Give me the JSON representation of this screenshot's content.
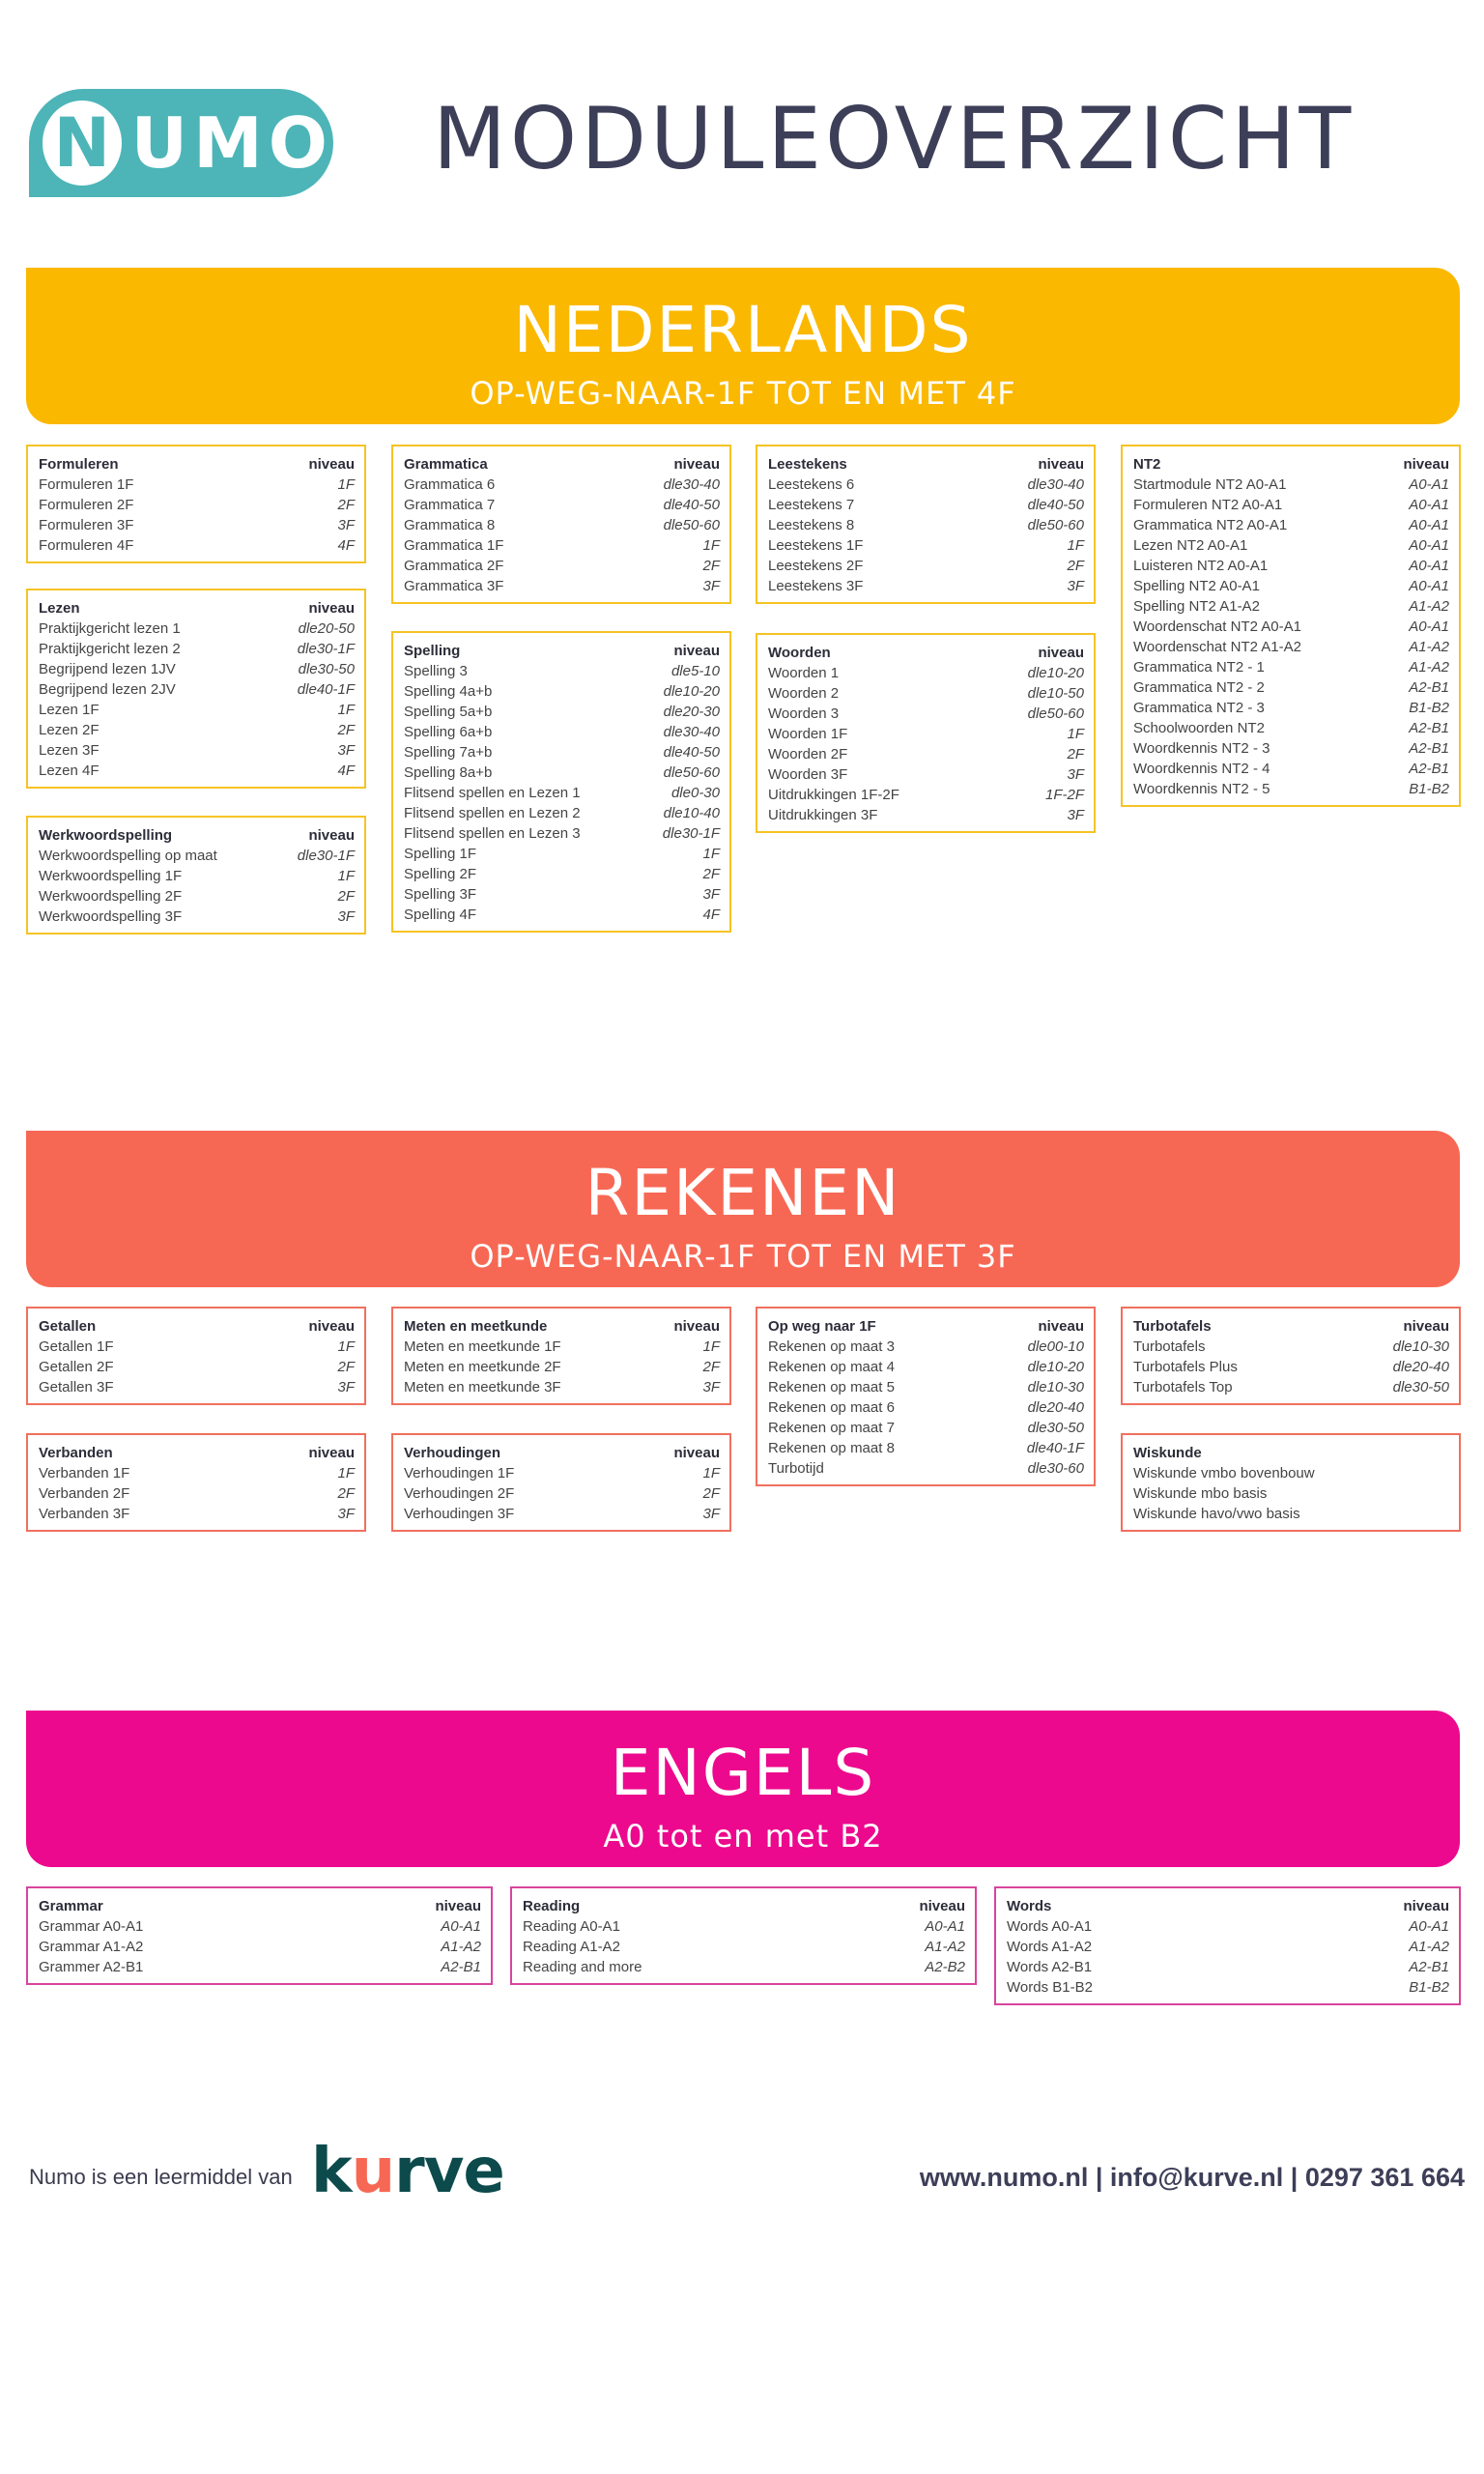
{
  "header": {
    "logo_n": "N",
    "logo_rest": "UMO",
    "title": "MODULEOVERZICHT"
  },
  "nederlands": {
    "title": "NEDERLANDS",
    "subtitle": "OP-WEG-NAAR-1F TOT EN MET 4F",
    "boxes": [
      {
        "title": "Formuleren",
        "niveau": "niveau",
        "rows": [
          [
            "Formuleren 1F",
            "1F"
          ],
          [
            "Formuleren 2F",
            "2F"
          ],
          [
            "Formuleren 3F",
            "3F"
          ],
          [
            "Formuleren 4F",
            "4F"
          ]
        ]
      },
      {
        "title": "Lezen",
        "niveau": "niveau",
        "rows": [
          [
            "Praktijkgericht lezen 1",
            "dle20-50"
          ],
          [
            "Praktijkgericht lezen 2",
            "dle30-1F"
          ],
          [
            "Begrijpend lezen 1JV",
            "dle30-50"
          ],
          [
            "Begrijpend lezen 2JV",
            "dle40-1F"
          ],
          [
            "Lezen 1F",
            "1F"
          ],
          [
            "Lezen 2F",
            "2F"
          ],
          [
            "Lezen 3F",
            "3F"
          ],
          [
            "Lezen 4F",
            "4F"
          ]
        ]
      },
      {
        "title": "Werkwoordspelling",
        "niveau": "niveau",
        "rows": [
          [
            "Werkwoordspelling op maat",
            "dle30-1F"
          ],
          [
            "Werkwoordspelling 1F",
            "1F"
          ],
          [
            "Werkwoordspelling 2F",
            "2F"
          ],
          [
            "Werkwoordspelling 3F",
            "3F"
          ]
        ]
      },
      {
        "title": "Grammatica",
        "niveau": "niveau",
        "rows": [
          [
            "Grammatica 6",
            "dle30-40"
          ],
          [
            "Grammatica 7",
            "dle40-50"
          ],
          [
            "Grammatica 8",
            "dle50-60"
          ],
          [
            "Grammatica 1F",
            "1F"
          ],
          [
            "Grammatica 2F",
            "2F"
          ],
          [
            "Grammatica 3F",
            "3F"
          ]
        ]
      },
      {
        "title": "Spelling",
        "niveau": "niveau",
        "rows": [
          [
            "Spelling 3",
            "dle5-10"
          ],
          [
            "Spelling 4a+b",
            "dle10-20"
          ],
          [
            "Spelling 5a+b",
            "dle20-30"
          ],
          [
            "Spelling 6a+b",
            "dle30-40"
          ],
          [
            "Spelling 7a+b",
            "dle40-50"
          ],
          [
            "Spelling 8a+b",
            "dle50-60"
          ],
          [
            "Flitsend spellen en Lezen 1",
            "dle0-30"
          ],
          [
            "Flitsend spellen en Lezen 2",
            "dle10-40"
          ],
          [
            "Flitsend spellen en Lezen 3",
            "dle30-1F"
          ],
          [
            "Spelling 1F",
            "1F"
          ],
          [
            "Spelling 2F",
            "2F"
          ],
          [
            "Spelling 3F",
            "3F"
          ],
          [
            "Spelling 4F",
            "4F"
          ]
        ]
      },
      {
        "title": "Leestekens",
        "niveau": "niveau",
        "rows": [
          [
            "Leestekens 6",
            "dle30-40"
          ],
          [
            "Leestekens 7",
            "dle40-50"
          ],
          [
            "Leestekens 8",
            "dle50-60"
          ],
          [
            "Leestekens 1F",
            "1F"
          ],
          [
            "Leestekens 2F",
            "2F"
          ],
          [
            "Leestekens 3F",
            "3F"
          ]
        ]
      },
      {
        "title": "Woorden",
        "niveau": "niveau",
        "rows": [
          [
            "Woorden 1",
            "dle10-20"
          ],
          [
            "Woorden 2",
            "dle10-50"
          ],
          [
            "Woorden 3",
            "dle50-60"
          ],
          [
            "Woorden 1F",
            "1F"
          ],
          [
            "Woorden 2F",
            "2F"
          ],
          [
            "Woorden 3F",
            "3F"
          ],
          [
            "Uitdrukkingen 1F-2F",
            "1F-2F"
          ],
          [
            "Uitdrukkingen 3F",
            "3F"
          ]
        ]
      },
      {
        "title": "NT2",
        "niveau": "niveau",
        "rows": [
          [
            "Startmodule NT2 A0-A1",
            "A0-A1"
          ],
          [
            "Formuleren NT2 A0-A1",
            "A0-A1"
          ],
          [
            "Grammatica NT2 A0-A1",
            "A0-A1"
          ],
          [
            "Lezen NT2 A0-A1",
            "A0-A1"
          ],
          [
            "Luisteren NT2 A0-A1",
            "A0-A1"
          ],
          [
            "Spelling NT2 A0-A1",
            "A0-A1"
          ],
          [
            "Spelling NT2 A1-A2",
            "A1-A2"
          ],
          [
            "Woordenschat NT2 A0-A1",
            "A0-A1"
          ],
          [
            "Woordenschat NT2 A1-A2",
            "A1-A2"
          ],
          [
            "Grammatica NT2 - 1",
            "A1-A2"
          ],
          [
            "Grammatica NT2 - 2",
            "A2-B1"
          ],
          [
            "Grammatica NT2 - 3",
            "B1-B2"
          ],
          [
            "Schoolwoorden NT2",
            "A2-B1"
          ],
          [
            "Woordkennis NT2 - 3",
            "A2-B1"
          ],
          [
            "Woordkennis NT2 - 4",
            "A2-B1"
          ],
          [
            "Woordkennis NT2 - 5",
            "B1-B2"
          ]
        ]
      }
    ]
  },
  "rekenen": {
    "title": "REKENEN",
    "subtitle": "OP-WEG-NAAR-1F TOT EN MET 3F",
    "boxes": [
      {
        "title": "Getallen",
        "niveau": "niveau",
        "rows": [
          [
            "Getallen 1F",
            "1F"
          ],
          [
            "Getallen 2F",
            "2F"
          ],
          [
            "Getallen 3F",
            "3F"
          ]
        ]
      },
      {
        "title": "Verbanden",
        "niveau": "niveau",
        "rows": [
          [
            "Verbanden 1F",
            "1F"
          ],
          [
            "Verbanden 2F",
            "2F"
          ],
          [
            "Verbanden 3F",
            "3F"
          ]
        ]
      },
      {
        "title": "Meten en meetkunde",
        "niveau": "niveau",
        "rows": [
          [
            "Meten en meetkunde 1F",
            "1F"
          ],
          [
            "Meten en meetkunde 2F",
            "2F"
          ],
          [
            "Meten en meetkunde 3F",
            "3F"
          ]
        ]
      },
      {
        "title": "Verhoudingen",
        "niveau": "niveau",
        "rows": [
          [
            "Verhoudingen 1F",
            "1F"
          ],
          [
            "Verhoudingen 2F",
            "2F"
          ],
          [
            "Verhoudingen 3F",
            "3F"
          ]
        ]
      },
      {
        "title": "Op weg naar 1F",
        "niveau": "niveau",
        "rows": [
          [
            "Rekenen op maat 3",
            "dle00-10"
          ],
          [
            "Rekenen op maat 4",
            "dle10-20"
          ],
          [
            "Rekenen op maat 5",
            "dle10-30"
          ],
          [
            "Rekenen op maat 6",
            "dle20-40"
          ],
          [
            "Rekenen op maat 7",
            "dle30-50"
          ],
          [
            "Rekenen op maat 8",
            "dle40-1F"
          ],
          [
            "Turbotijd",
            "dle30-60"
          ]
        ]
      },
      {
        "title": "Turbotafels",
        "niveau": "niveau",
        "rows": [
          [
            "Turbotafels",
            "dle10-30"
          ],
          [
            "Turbotafels Plus",
            "dle20-40"
          ],
          [
            "Turbotafels Top",
            "dle30-50"
          ]
        ]
      },
      {
        "title": "Wiskunde",
        "niveau": "",
        "rows": [
          [
            "Wiskunde vmbo bovenbouw",
            ""
          ],
          [
            "Wiskunde mbo basis",
            ""
          ],
          [
            "Wiskunde havo/vwo basis",
            ""
          ]
        ]
      }
    ]
  },
  "engels": {
    "title": "ENGELS",
    "subtitle": "A0 tot en met B2",
    "boxes": [
      {
        "title": "Grammar",
        "niveau": "niveau",
        "rows": [
          [
            "Grammar A0-A1",
            "A0-A1"
          ],
          [
            "Grammar A1-A2",
            "A1-A2"
          ],
          [
            "Grammer A2-B1",
            "A2-B1"
          ]
        ]
      },
      {
        "title": "Reading",
        "niveau": "niveau",
        "rows": [
          [
            "Reading A0-A1",
            "A0-A1"
          ],
          [
            "Reading A1-A2",
            "A1-A2"
          ],
          [
            "Reading and more",
            "A2-B2"
          ]
        ]
      },
      {
        "title": "Words",
        "niveau": "niveau",
        "rows": [
          [
            "Words A0-A1",
            "A0-A1"
          ],
          [
            "Words A1-A2",
            "A1-A2"
          ],
          [
            "Words A2-B1",
            "A2-B1"
          ],
          [
            "Words B1-B2",
            "B1-B2"
          ]
        ]
      }
    ]
  },
  "footer": {
    "left_text": "Numo is een leermiddel van",
    "kurve_k": "k",
    "kurve_u": "u",
    "kurve_rest": "rve",
    "contact": "www.numo.nl | info@kurve.nl | 0297 361 664"
  },
  "colors": {
    "nederlands": "#fbb800",
    "rekenen": "#f76854",
    "engels": "#ec098d",
    "logo": "#4db5b8"
  }
}
